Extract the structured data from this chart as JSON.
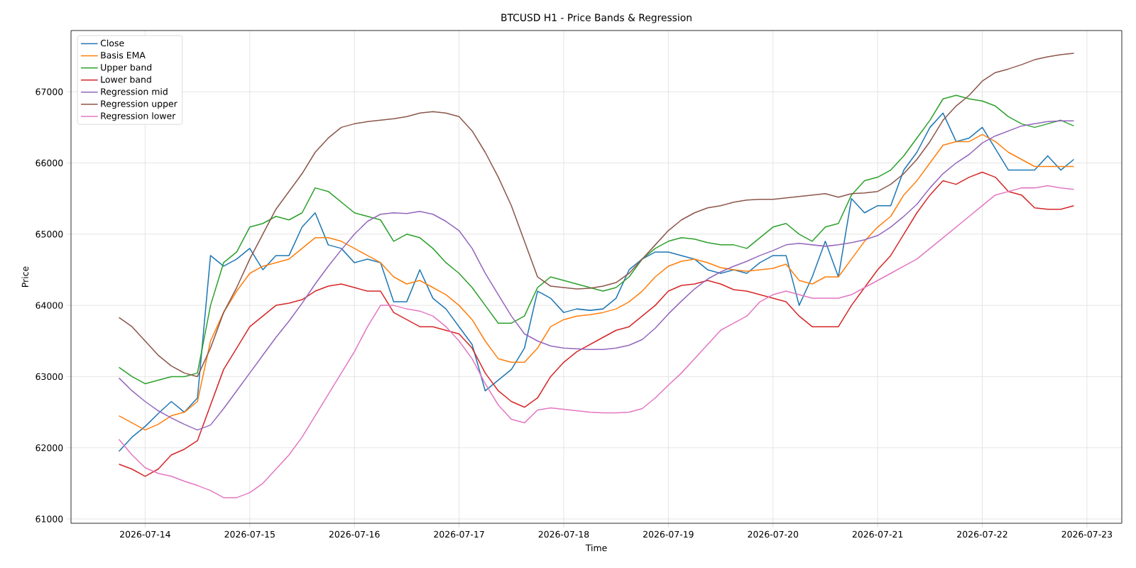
{
  "chart_data": {
    "type": "line",
    "title": "BTCUSD H1 - Price Bands & Regression",
    "xlabel": "Time",
    "ylabel": "Price",
    "x": [
      "2026-07-13T18:00",
      "2026-07-13T21:00",
      "2026-07-14T00:00",
      "2026-07-14T03:00",
      "2026-07-14T06:00",
      "2026-07-14T09:00",
      "2026-07-14T12:00",
      "2026-07-14T15:00",
      "2026-07-14T18:00",
      "2026-07-14T21:00",
      "2026-07-15T00:00",
      "2026-07-15T03:00",
      "2026-07-15T06:00",
      "2026-07-15T09:00",
      "2026-07-15T12:00",
      "2026-07-15T15:00",
      "2026-07-15T18:00",
      "2026-07-15T21:00",
      "2026-07-16T00:00",
      "2026-07-16T03:00",
      "2026-07-16T06:00",
      "2026-07-16T09:00",
      "2026-07-16T12:00",
      "2026-07-16T15:00",
      "2026-07-16T18:00",
      "2026-07-16T21:00",
      "2026-07-17T00:00",
      "2026-07-17T03:00",
      "2026-07-17T06:00",
      "2026-07-17T09:00",
      "2026-07-17T12:00",
      "2026-07-17T15:00",
      "2026-07-17T18:00",
      "2026-07-17T21:00",
      "2026-07-18T00:00",
      "2026-07-18T03:00",
      "2026-07-18T06:00",
      "2026-07-18T09:00",
      "2026-07-18T12:00",
      "2026-07-18T15:00",
      "2026-07-18T18:00",
      "2026-07-18T21:00",
      "2026-07-19T00:00",
      "2026-07-19T03:00",
      "2026-07-19T06:00",
      "2026-07-19T09:00",
      "2026-07-19T12:00",
      "2026-07-19T15:00",
      "2026-07-19T18:00",
      "2026-07-19T21:00",
      "2026-07-20T00:00",
      "2026-07-20T03:00",
      "2026-07-20T06:00",
      "2026-07-20T09:00",
      "2026-07-20T12:00",
      "2026-07-20T15:00",
      "2026-07-20T18:00",
      "2026-07-20T21:00",
      "2026-07-21T00:00",
      "2026-07-21T03:00",
      "2026-07-21T06:00",
      "2026-07-21T09:00",
      "2026-07-21T12:00",
      "2026-07-21T15:00",
      "2026-07-21T18:00",
      "2026-07-21T21:00",
      "2026-07-22T00:00",
      "2026-07-22T03:00",
      "2026-07-22T06:00",
      "2026-07-22T09:00",
      "2026-07-22T12:00",
      "2026-07-22T15:00",
      "2026-07-22T18:00",
      "2026-07-22T21:00"
    ],
    "series": [
      {
        "name": "Close",
        "color": "#1f77b4",
        "values": [
          61950,
          62150,
          62300,
          62480,
          62650,
          62500,
          62700,
          64700,
          64550,
          64650,
          64800,
          64500,
          64700,
          64700,
          65100,
          65300,
          64850,
          64800,
          64600,
          64650,
          64600,
          64050,
          64050,
          64500,
          64100,
          63950,
          63700,
          63450,
          62800,
          62950,
          63100,
          63400,
          64200,
          64100,
          63900,
          63950,
          63930,
          63950,
          64100,
          64500,
          64650,
          64750,
          64750,
          64700,
          64650,
          64500,
          64450,
          64500,
          64450,
          64600,
          64700,
          64700,
          64000,
          64400,
          64900,
          64400,
          65500,
          65300,
          65400,
          65400,
          65900,
          66150,
          66500,
          66700,
          66300,
          66350,
          66500,
          66200,
          65900,
          65900,
          65900,
          66100,
          65900,
          66050
        ]
      },
      {
        "name": "Basis EMA",
        "color": "#ff7f0e",
        "values": [
          62450,
          62350,
          62250,
          62330,
          62450,
          62500,
          62650,
          63500,
          63900,
          64200,
          64450,
          64550,
          64600,
          64650,
          64800,
          64950,
          64950,
          64900,
          64800,
          64700,
          64600,
          64400,
          64300,
          64350,
          64250,
          64150,
          64000,
          63800,
          63500,
          63250,
          63200,
          63200,
          63400,
          63700,
          63800,
          63850,
          63870,
          63900,
          63950,
          64050,
          64200,
          64400,
          64550,
          64620,
          64650,
          64600,
          64530,
          64500,
          64480,
          64500,
          64520,
          64580,
          64350,
          64300,
          64400,
          64400,
          64650,
          64900,
          65100,
          65250,
          65550,
          65750,
          66000,
          66250,
          66300,
          66300,
          66400,
          66300,
          66150,
          66050,
          65950,
          65950,
          65950,
          65950
        ]
      },
      {
        "name": "Upper band",
        "color": "#2ca02c",
        "values": [
          63130,
          63000,
          62900,
          62950,
          63000,
          63000,
          63050,
          64000,
          64600,
          64750,
          65100,
          65150,
          65250,
          65200,
          65300,
          65650,
          65600,
          65450,
          65300,
          65250,
          65200,
          64900,
          65000,
          64950,
          64800,
          64600,
          64450,
          64250,
          64000,
          63750,
          63750,
          63850,
          64250,
          64400,
          64350,
          64300,
          64250,
          64200,
          64250,
          64400,
          64650,
          64800,
          64900,
          64950,
          64930,
          64880,
          64850,
          64850,
          64800,
          64950,
          65100,
          65150,
          65000,
          64900,
          65100,
          65150,
          65550,
          65750,
          65800,
          65900,
          66100,
          66350,
          66600,
          66900,
          66950,
          66900,
          66870,
          66800,
          66650,
          66550,
          66500,
          66550,
          66600,
          66520
        ]
      },
      {
        "name": "Lower band",
        "color": "#d62728",
        "values": [
          61770,
          61700,
          61600,
          61700,
          61900,
          61980,
          62100,
          62600,
          63100,
          63400,
          63700,
          63850,
          64000,
          64030,
          64080,
          64200,
          64270,
          64300,
          64250,
          64200,
          64200,
          63900,
          63800,
          63700,
          63700,
          63650,
          63600,
          63400,
          63050,
          62800,
          62650,
          62570,
          62700,
          63000,
          63200,
          63350,
          63450,
          63550,
          63650,
          63700,
          63850,
          64000,
          64200,
          64280,
          64300,
          64350,
          64300,
          64220,
          64200,
          64150,
          64100,
          64050,
          63850,
          63700,
          63700,
          63700,
          64000,
          64250,
          64500,
          64700,
          65000,
          65300,
          65550,
          65750,
          65700,
          65800,
          65870,
          65800,
          65600,
          65550,
          65370,
          65350,
          65350,
          65400
        ]
      },
      {
        "name": "Regression mid",
        "color": "#9467bd",
        "values": [
          62980,
          62800,
          62650,
          62520,
          62420,
          62330,
          62250,
          62320,
          62550,
          62800,
          63050,
          63300,
          63550,
          63780,
          64030,
          64300,
          64550,
          64780,
          65000,
          65180,
          65280,
          65300,
          65290,
          65320,
          65280,
          65180,
          65050,
          64800,
          64450,
          64150,
          63850,
          63600,
          63500,
          63430,
          63400,
          63390,
          63380,
          63380,
          63400,
          63440,
          63520,
          63680,
          63880,
          64060,
          64230,
          64370,
          64470,
          64550,
          64620,
          64700,
          64770,
          64850,
          64870,
          64850,
          64830,
          64850,
          64880,
          64920,
          64980,
          65100,
          65250,
          65420,
          65650,
          65850,
          66000,
          66120,
          66280,
          66380,
          66450,
          66520,
          66550,
          66580,
          66590,
          66590
        ]
      },
      {
        "name": "Regression upper",
        "color": "#8c564b",
        "values": [
          63830,
          63700,
          63500,
          63300,
          63150,
          63050,
          63000,
          63400,
          63900,
          64250,
          64650,
          65000,
          65350,
          65600,
          65850,
          66150,
          66350,
          66500,
          66550,
          66580,
          66600,
          66620,
          66650,
          66700,
          66720,
          66700,
          66650,
          66450,
          66150,
          65800,
          65400,
          64900,
          64400,
          64270,
          64250,
          64230,
          64240,
          64270,
          64320,
          64450,
          64650,
          64850,
          65050,
          65200,
          65300,
          65370,
          65400,
          65450,
          65480,
          65490,
          65490,
          65510,
          65530,
          65550,
          65570,
          65520,
          65570,
          65580,
          65600,
          65700,
          65850,
          66050,
          66300,
          66600,
          66800,
          66950,
          67150,
          67270,
          67320,
          67380,
          67450,
          67490,
          67520,
          67540
        ]
      },
      {
        "name": "Regression lower",
        "color": "#e377c2",
        "values": [
          62120,
          61900,
          61720,
          61640,
          61600,
          61530,
          61470,
          61400,
          61300,
          61300,
          61370,
          61500,
          61700,
          61900,
          62150,
          62450,
          62750,
          63050,
          63350,
          63700,
          64000,
          64000,
          63950,
          63920,
          63850,
          63700,
          63500,
          63250,
          62900,
          62600,
          62400,
          62350,
          62530,
          62560,
          62540,
          62520,
          62500,
          62490,
          62490,
          62500,
          62550,
          62700,
          62880,
          63050,
          63250,
          63450,
          63650,
          63750,
          63850,
          64050,
          64150,
          64200,
          64150,
          64100,
          64100,
          64100,
          64150,
          64250,
          64350,
          64450,
          64550,
          64650,
          64800,
          64950,
          65100,
          65250,
          65400,
          65550,
          65600,
          65650,
          65650,
          65680,
          65650,
          65630
        ]
      }
    ],
    "xlim": [
      "2026-07-13T07:00",
      "2026-07-23T08:00"
    ],
    "ylim": [
      60940,
      67860
    ],
    "xticks": [
      "2026-07-14",
      "2026-07-15",
      "2026-07-16",
      "2026-07-17",
      "2026-07-18",
      "2026-07-19",
      "2026-07-20",
      "2026-07-21",
      "2026-07-22",
      "2026-07-23"
    ],
    "yticks": [
      61000,
      62000,
      63000,
      64000,
      65000,
      66000,
      67000
    ],
    "grid": true,
    "legend": "top left"
  }
}
